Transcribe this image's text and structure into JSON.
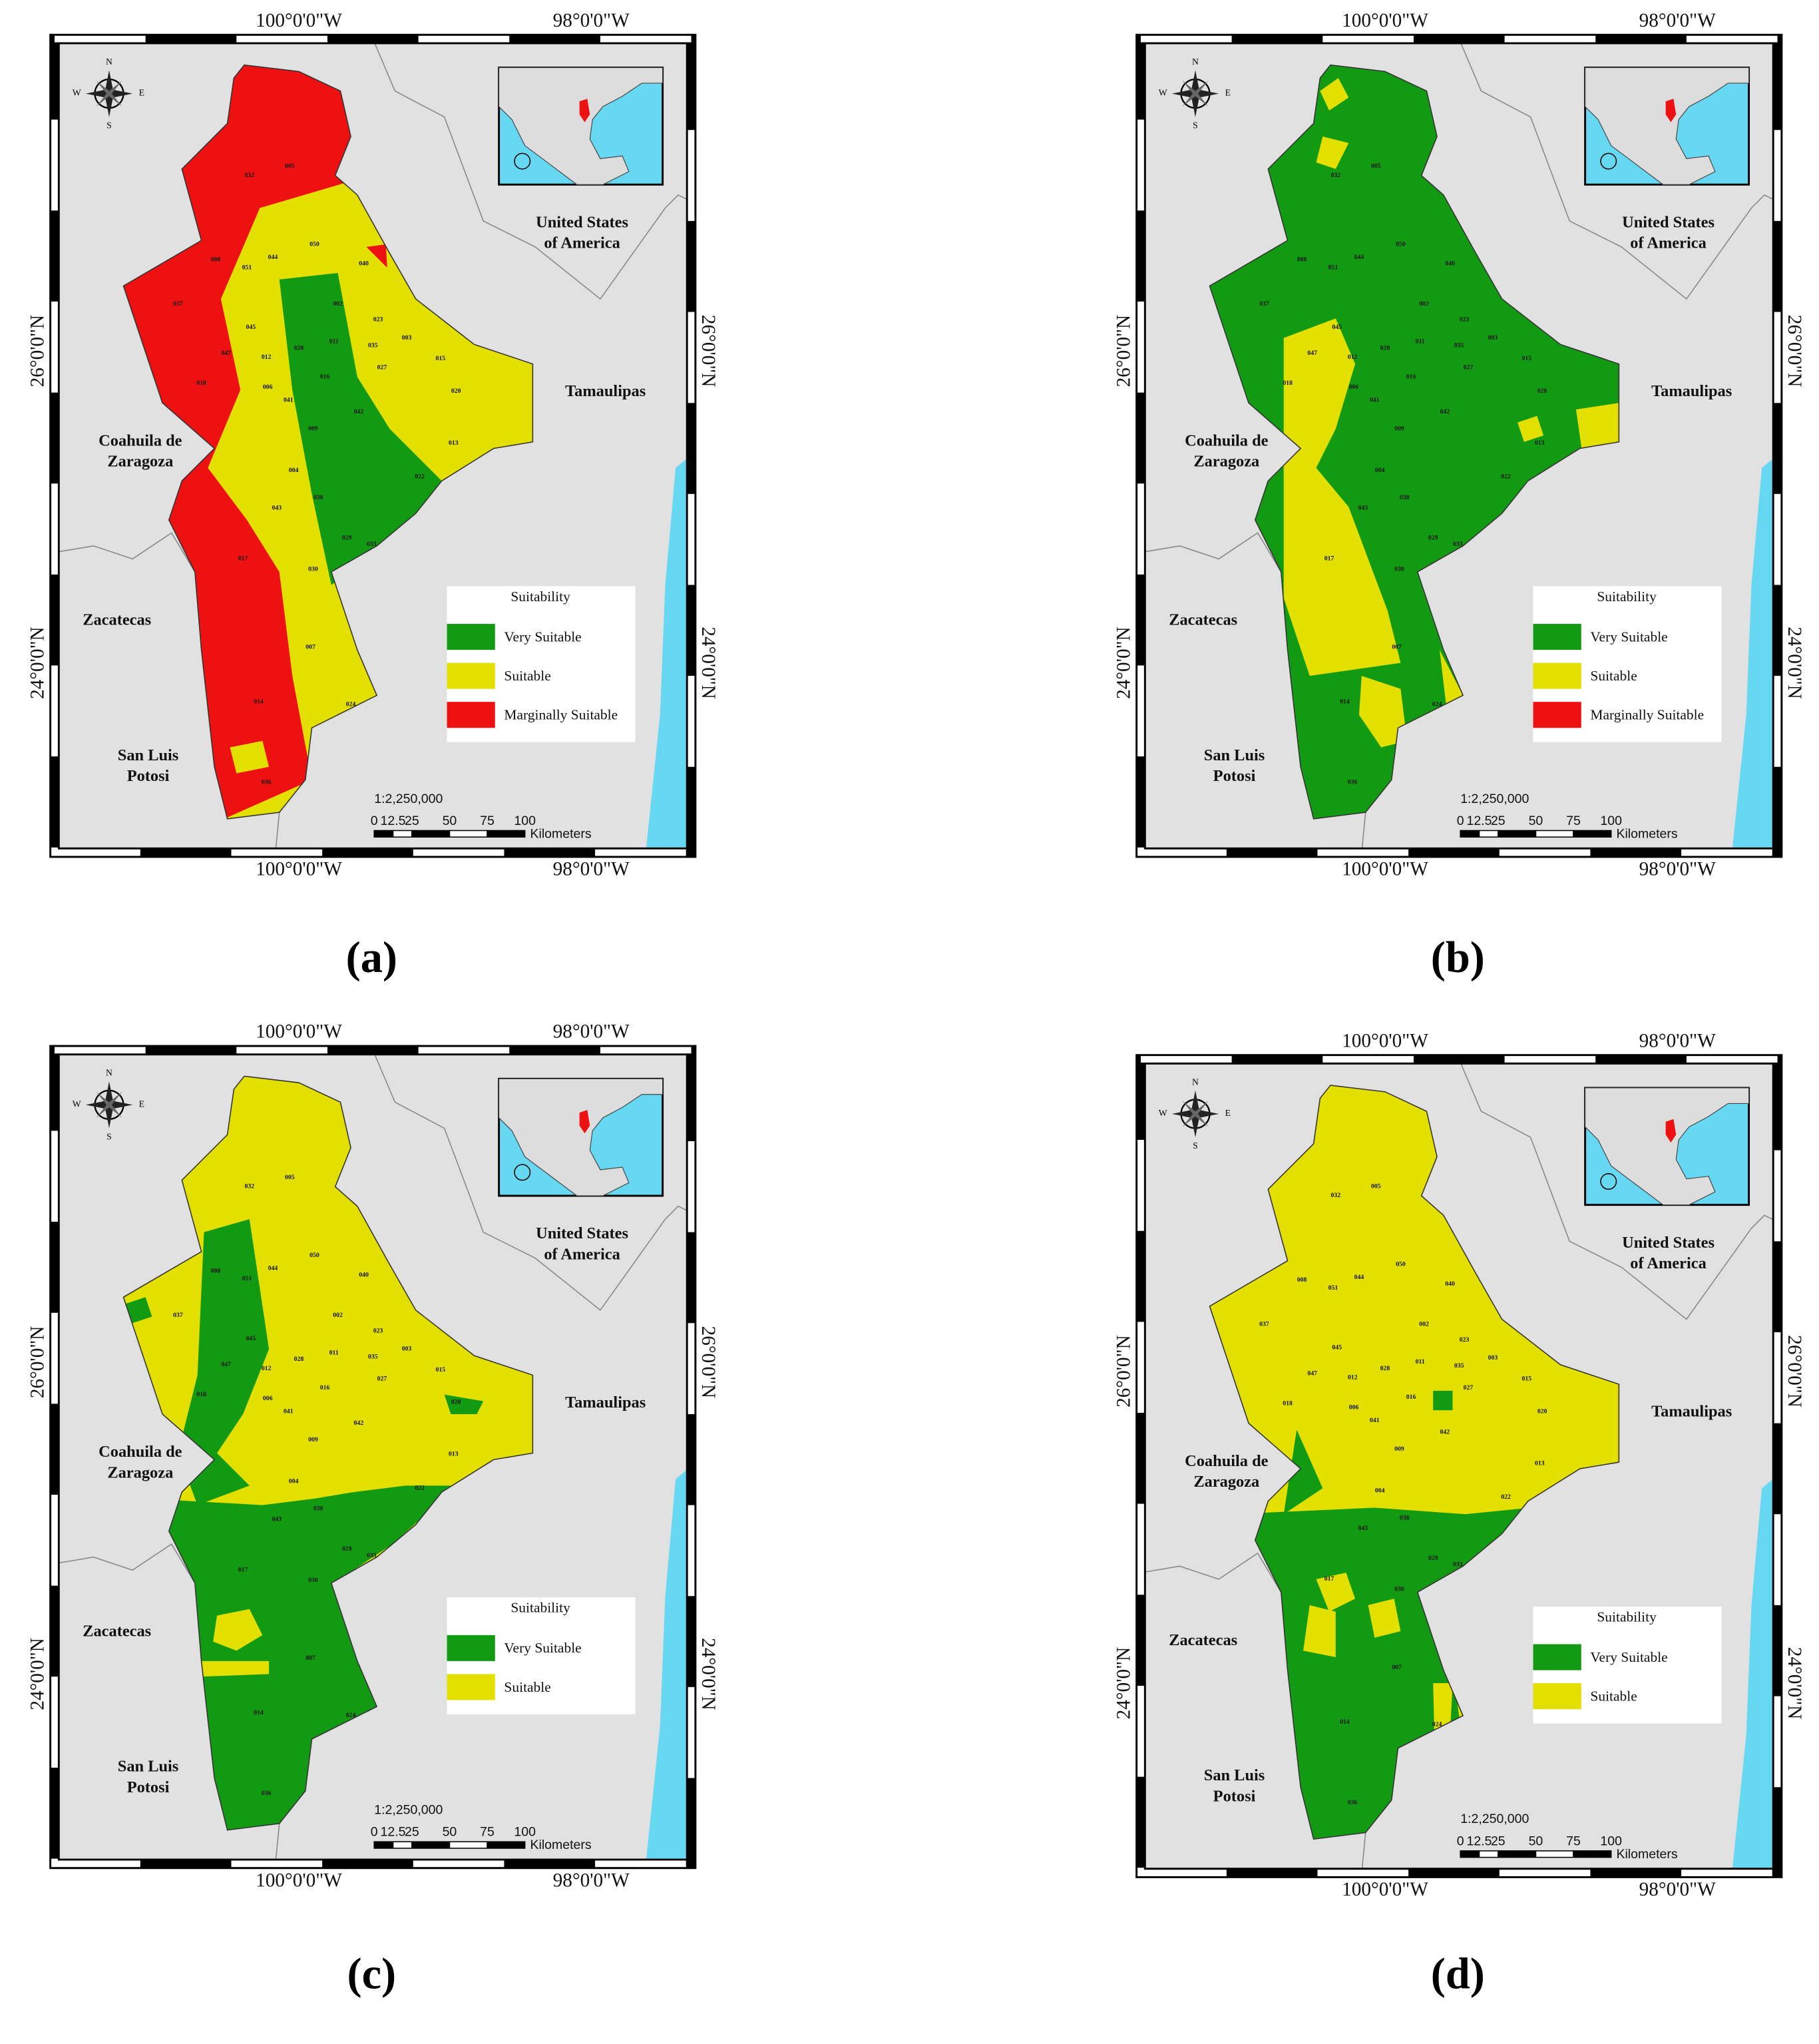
{
  "coordinates": {
    "lon": [
      "100°0'0\"W",
      "98°0'0\"W"
    ],
    "lat": [
      "26°0'0\"N",
      "24°0'0\"N"
    ]
  },
  "places": [
    {
      "lines": [
        "United States",
        "of America"
      ]
    },
    {
      "lines": [
        "Tamaulipas"
      ]
    },
    {
      "lines": [
        "Coahuila de",
        "Zaragoza"
      ]
    },
    {
      "lines": [
        "Zacatecas"
      ]
    },
    {
      "lines": [
        "San Luis",
        "Potosi"
      ]
    }
  ],
  "compass": [
    "N",
    "S",
    "W",
    "E"
  ],
  "scale": {
    "ratio": "1:2,250,000",
    "ticks": [
      0,
      12.5,
      25,
      50,
      75,
      100
    ],
    "unit": "Kilometers"
  },
  "municipalities": [
    "005",
    "032",
    "050",
    "044",
    "040",
    "008",
    "051",
    "037",
    "045",
    "002",
    "023",
    "035",
    "003",
    "015",
    "011",
    "028",
    "020",
    "027",
    "016",
    "042",
    "012",
    "047",
    "018",
    "006",
    "041",
    "009",
    "013",
    "004",
    "022",
    "038",
    "043",
    "029",
    "033",
    "017",
    "030",
    "007",
    "024",
    "014",
    "036"
  ],
  "panels": [
    {
      "label": "(a)",
      "legend": {
        "title": "Suitability",
        "items": [
          {
            "label": "Very Suitable",
            "color": "#129a12"
          },
          {
            "label": "Suitable",
            "color": "#e3e000"
          },
          {
            "label": "Marginally Suitable",
            "color": "#ee1111"
          }
        ]
      }
    },
    {
      "label": "(b)",
      "legend": {
        "title": "Suitability",
        "items": [
          {
            "label": "Very Suitable",
            "color": "#129a12"
          },
          {
            "label": "Suitable",
            "color": "#e3e000"
          },
          {
            "label": "Marginally Suitable",
            "color": "#ee1111"
          }
        ]
      }
    },
    {
      "label": "(c)",
      "legend": {
        "title": "Suitability",
        "items": [
          {
            "label": "Very Suitable",
            "color": "#129a12"
          },
          {
            "label": "Suitable",
            "color": "#e3e000"
          }
        ]
      }
    },
    {
      "label": "(d)",
      "legend": {
        "title": "Suitability",
        "items": [
          {
            "label": "Very Suitable",
            "color": "#129a12"
          },
          {
            "label": "Suitable",
            "color": "#e3e000"
          }
        ]
      }
    }
  ]
}
